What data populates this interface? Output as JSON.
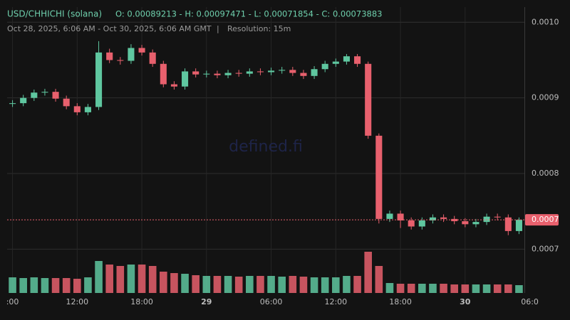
{
  "chart_data": {
    "type": "candlestick",
    "title": "USD/CHHICHI (solana)",
    "ohlc_text": "O: 0.00089213 - H: 0.00097471 - L: 0.00071854 - C: 0.00073883",
    "subtitle": "Oct 28, 2025, 6:06 AM - Oct 30, 2025, 6:06 AM GMT",
    "resolution": "Resolution: 15m",
    "watermark": "defined.fi",
    "up_color": "#5fc7a0",
    "down_color": "#e8606d",
    "grid": true,
    "ylim": [
      0.000644,
      0.00102
    ],
    "yticks": [
      {
        "value": 0.001,
        "label": "0.0010"
      },
      0.0009,
      0.0008,
      0.0007
    ],
    "last_price": {
      "value": 0.00073883,
      "label": "0.0007"
    },
    "xlim": [
      0,
      48
    ],
    "xticks": [
      {
        "value": 0.5,
        "label": ":00"
      },
      {
        "value": 6.5,
        "label": "12:00"
      },
      {
        "value": 12.5,
        "label": "18:00"
      },
      {
        "value": 18.5,
        "label": "29"
      },
      {
        "value": 24.5,
        "label": "06:00"
      },
      {
        "value": 30.5,
        "label": "12:00"
      },
      {
        "value": 36.5,
        "label": "18:00"
      },
      {
        "value": 42.5,
        "label": "30"
      },
      {
        "value": 48.5,
        "label": "06:0"
      }
    ],
    "vlim": [
      0,
      100
    ],
    "open": [
      0.000892,
      0.000893,
      0.0009,
      0.000907,
      0.000908,
      0.000899,
      0.000889,
      0.000881,
      0.000888,
      0.00096,
      0.00095,
      0.000949,
      0.000966,
      0.00096,
      0.000945,
      0.000918,
      0.000915,
      0.000935,
      0.000931,
      0.000932,
      0.00093,
      0.000933,
      0.000932,
      0.000935,
      0.000934,
      0.000936,
      0.000937,
      0.000933,
      0.000929,
      0.000938,
      0.000945,
      0.000948,
      0.000955,
      0.000945,
      0.00085,
      0.00074,
      0.000747,
      0.000738,
      0.00073,
      0.000738,
      0.000742,
      0.00074,
      0.000737,
      0.000733,
      0.000736,
      0.000743,
      0.000742,
      0.000724
    ],
    "high": [
      0.000897,
      0.000904,
      0.000911,
      0.000912,
      0.000912,
      0.000903,
      0.000893,
      0.000892,
      0.000975,
      0.000965,
      0.000954,
      0.000971,
      0.00097,
      0.000964,
      0.000949,
      0.000922,
      0.000939,
      0.000939,
      0.000936,
      0.000936,
      0.000937,
      0.000937,
      0.000939,
      0.000939,
      0.00094,
      0.000941,
      0.000941,
      0.000937,
      0.000942,
      0.000949,
      0.000952,
      0.000958,
      0.000958,
      0.000948,
      0.000853,
      0.000751,
      0.000751,
      0.000742,
      0.000742,
      0.000746,
      0.000746,
      0.000744,
      0.000741,
      0.00074,
      0.000747,
      0.000747,
      0.000746,
      0.000742
    ],
    "low": [
      0.000888,
      0.000889,
      0.000896,
      0.000903,
      0.000895,
      0.000885,
      0.000877,
      0.000877,
      0.000884,
      0.000946,
      0.000944,
      0.000945,
      0.000956,
      0.000941,
      0.000914,
      0.000911,
      0.000911,
      0.000927,
      0.000927,
      0.000926,
      0.000926,
      0.000928,
      0.000928,
      0.00093,
      0.00093,
      0.000932,
      0.000929,
      0.000925,
      0.000925,
      0.000934,
      0.000941,
      0.000944,
      0.000941,
      0.000846,
      0.000734,
      0.000736,
      0.000728,
      0.000726,
      0.000726,
      0.000734,
      0.000736,
      0.000733,
      0.000729,
      0.000729,
      0.000732,
      0.000738,
      0.00071854,
      0.00072
    ],
    "close": [
      0.000893,
      0.0009,
      0.000907,
      0.000908,
      0.000899,
      0.000889,
      0.000881,
      0.000888,
      0.00096,
      0.00095,
      0.000949,
      0.000966,
      0.00096,
      0.000945,
      0.000918,
      0.000915,
      0.000935,
      0.000931,
      0.000932,
      0.00093,
      0.000933,
      0.000932,
      0.000935,
      0.000934,
      0.000936,
      0.000937,
      0.000933,
      0.000929,
      0.000938,
      0.000945,
      0.000948,
      0.000955,
      0.000945,
      0.00085,
      0.00074,
      0.000747,
      0.000738,
      0.00073,
      0.000738,
      0.000742,
      0.00074,
      0.000737,
      0.000733,
      0.000736,
      0.000743,
      0.000742,
      0.000724,
      0.00073883
    ],
    "volume": [
      22,
      21,
      22,
      21,
      21,
      21,
      20,
      22,
      45,
      40,
      38,
      40,
      40,
      38,
      30,
      28,
      27,
      25,
      24,
      24,
      24,
      23,
      24,
      24,
      24,
      23,
      24,
      23,
      22,
      22,
      22,
      24,
      24,
      58,
      38,
      14,
      13,
      13,
      13,
      13,
      13,
      12,
      12,
      12,
      12,
      12,
      12,
      11
    ]
  }
}
